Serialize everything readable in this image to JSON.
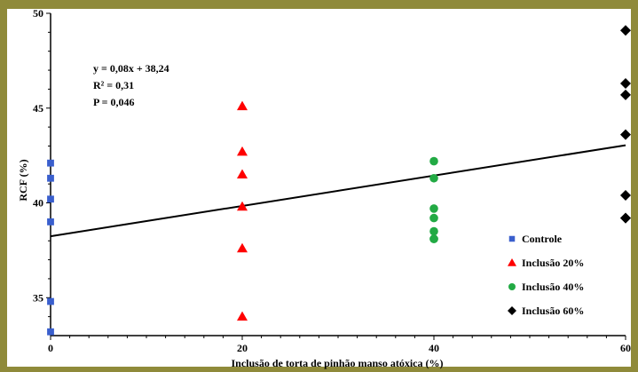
{
  "colors": {
    "border": "#8f8a3a",
    "background": "#ffffff",
    "controle": "#3a5fcd",
    "inclusao20": "#ff0000",
    "inclusao40": "#22aa44",
    "inclusao60": "#000000",
    "trendline": "#000000"
  },
  "chart_data": {
    "type": "scatter",
    "title": "",
    "xlabel": "Inclusão de torta de pinhão manso atóxica (%)",
    "ylabel": "RCF (%)",
    "xlim": [
      0,
      60
    ],
    "ylim": [
      33,
      50
    ],
    "xticks": [
      "0",
      "20",
      "40",
      "60"
    ],
    "yticks": [
      "35",
      "40",
      "45",
      "50"
    ],
    "legend_position": "bottom-right",
    "annotations": [
      "y = 0,08x + 38,24",
      "R² = 0,31",
      "P = 0,046"
    ],
    "trendline": {
      "slope": 0.08,
      "intercept": 38.24
    },
    "series": [
      {
        "name": "Controle",
        "marker": "square",
        "x": [
          0,
          0,
          0,
          0,
          0,
          0
        ],
        "y": [
          42.1,
          41.3,
          40.2,
          39.0,
          34.8,
          33.2
        ]
      },
      {
        "name": "Inclusão 20%",
        "marker": "triangle",
        "x": [
          20,
          20,
          20,
          20,
          20,
          20
        ],
        "y": [
          45.1,
          42.7,
          41.5,
          39.8,
          37.6,
          34.0
        ]
      },
      {
        "name": "Inclusão 40%",
        "marker": "circle",
        "x": [
          40,
          40,
          40,
          40,
          40,
          40,
          40
        ],
        "y": [
          42.2,
          41.3,
          39.7,
          39.2,
          38.5,
          38.1,
          38.1
        ]
      },
      {
        "name": "Inclusão 60%",
        "marker": "diamond",
        "x": [
          60,
          60,
          60,
          60,
          60,
          60,
          60
        ],
        "y": [
          49.1,
          46.3,
          45.7,
          43.6,
          40.4,
          39.2,
          39.2
        ]
      }
    ]
  }
}
